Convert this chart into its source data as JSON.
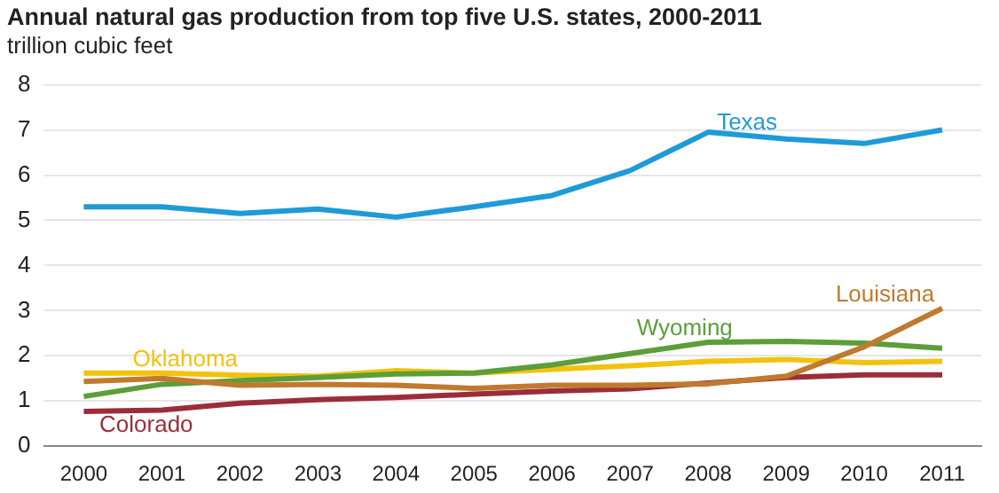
{
  "chart_data": {
    "type": "line",
    "title": "Annual natural gas production from top five U.S. states, 2000-2011",
    "ylabel": "trillion cubic feet",
    "categories": [
      "2000",
      "2001",
      "2002",
      "2003",
      "2004",
      "2005",
      "2006",
      "2007",
      "2008",
      "2009",
      "2010",
      "2011"
    ],
    "series": [
      {
        "name": "Texas",
        "color": "#1e9bd7",
        "values": [
          5.3,
          5.3,
          5.15,
          5.25,
          5.07,
          5.3,
          5.55,
          6.1,
          6.95,
          6.8,
          6.7,
          7.0
        ]
      },
      {
        "name": "Louisiana",
        "color": "#c07a2e",
        "values": [
          1.43,
          1.5,
          1.35,
          1.37,
          1.35,
          1.28,
          1.35,
          1.35,
          1.38,
          1.55,
          2.2,
          3.05
        ]
      },
      {
        "name": "Wyoming",
        "color": "#5c9e3a",
        "values": [
          1.1,
          1.37,
          1.45,
          1.52,
          1.6,
          1.62,
          1.8,
          2.05,
          2.3,
          2.32,
          2.28,
          2.17
        ]
      },
      {
        "name": "Oklahoma",
        "color": "#f2c20f",
        "values": [
          1.62,
          1.62,
          1.57,
          1.55,
          1.67,
          1.62,
          1.7,
          1.78,
          1.88,
          1.92,
          1.85,
          1.88
        ]
      },
      {
        "name": "Colorado",
        "color": "#9b2d3a",
        "values": [
          0.77,
          0.8,
          0.95,
          1.03,
          1.08,
          1.15,
          1.22,
          1.27,
          1.4,
          1.52,
          1.58,
          1.58
        ]
      }
    ],
    "ylim": [
      0,
      8
    ],
    "yticks": [
      0,
      1,
      2,
      3,
      4,
      5,
      6,
      7,
      8
    ],
    "grid": "y",
    "legend": false,
    "marker": "none",
    "line_style": "solid"
  }
}
